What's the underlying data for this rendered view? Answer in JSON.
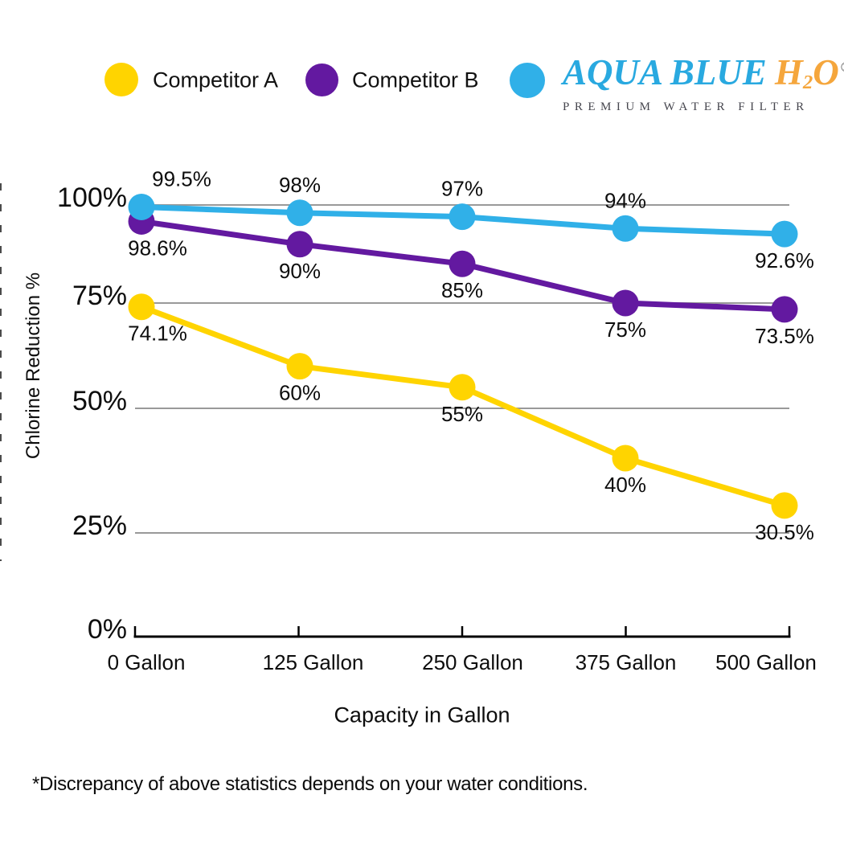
{
  "legend": {
    "items": [
      {
        "label": "Competitor A",
        "color": "#FFD400"
      },
      {
        "label": "Competitor B",
        "color": "#6319A0"
      },
      {
        "label": "Aqua Blue H2O",
        "color": "#30B0E8"
      }
    ]
  },
  "brand": {
    "name": "AQUA BLUE",
    "h": "H",
    "sub": "2",
    "o": "O",
    "registered": "®",
    "tagline": "PREMIUM WATER FILTER",
    "name_color": "#29A9E0",
    "h2o_color": "#F5A63C",
    "tagline_color": "#46464E"
  },
  "chart_data": {
    "type": "line",
    "title": "",
    "xlabel": "Capacity in Gallon",
    "ylabel": "Chlorine Reduction %",
    "x_tick_labels": [
      "0 Gallon",
      "125 Gallon",
      "250 Gallon",
      "375 Gallon",
      "500 Gallon"
    ],
    "x_values": [
      0,
      125,
      250,
      375,
      500
    ],
    "y_tick_labels": [
      "100%",
      "75%",
      "50%",
      "25%",
      "0%"
    ],
    "y_tick_values": [
      100,
      75,
      50,
      25,
      0
    ],
    "ylim": [
      0,
      100
    ],
    "grid": true,
    "grid_color": "#999999",
    "legend_position": "top",
    "series": [
      {
        "name": "Competitor A",
        "color": "#FFD400",
        "values": [
          74.1,
          60,
          55,
          40,
          30.5
        ],
        "point_labels": [
          "74.1%",
          "60%",
          "55%",
          "40%",
          "30.5%"
        ],
        "label_side": [
          "below",
          "below",
          "below",
          "below",
          "below"
        ]
      },
      {
        "name": "Competitor B",
        "color": "#6319A0",
        "values": [
          98.6,
          90,
          85,
          75,
          73.5
        ],
        "point_labels": [
          "98.6%",
          "90%",
          "85%",
          "75%",
          "73.5%"
        ],
        "label_side": [
          "below",
          "below",
          "below",
          "below",
          "below"
        ]
      },
      {
        "name": "Aqua Blue H2O",
        "color": "#30B0E8",
        "values": [
          99.5,
          98,
          97,
          94,
          92.6
        ],
        "point_labels": [
          "99.5%",
          "98%",
          "97%",
          "94%",
          "92.6%"
        ],
        "label_side": [
          "above",
          "above",
          "above",
          "above",
          "below"
        ]
      }
    ]
  },
  "footnote": "*Discrepancy of above statistics depends on your water conditions."
}
